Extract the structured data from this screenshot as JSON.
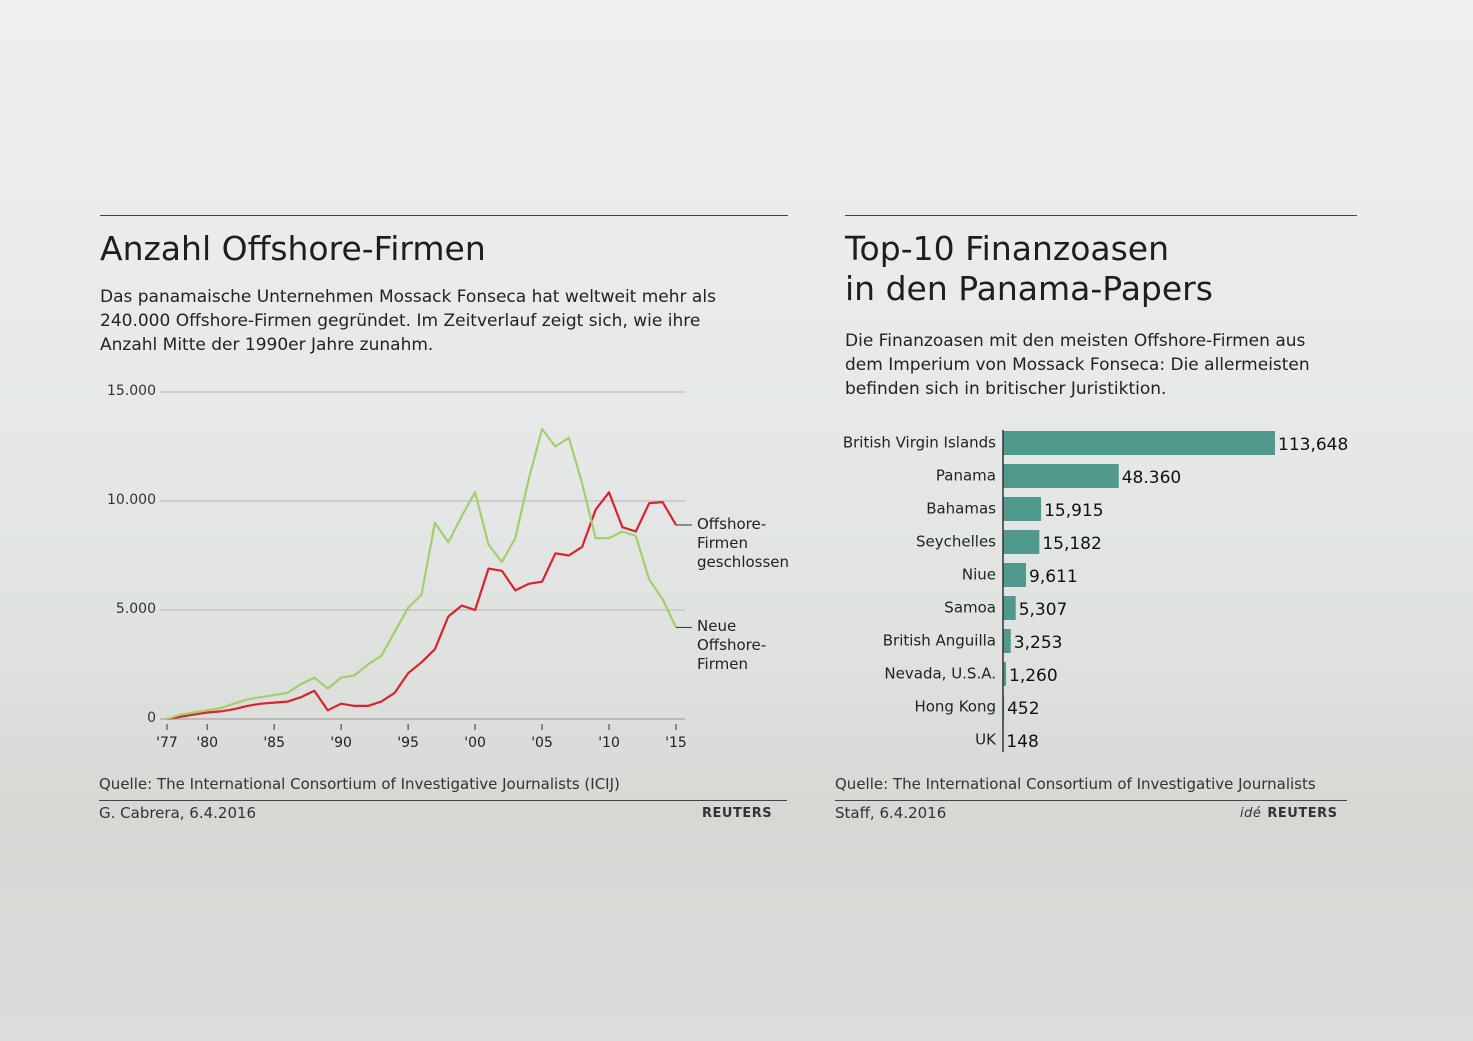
{
  "chart_data": [
    {
      "type": "line",
      "title": "Anzahl Offshore-Firmen",
      "subtitle": "Das panamaische Unternehmen Mossack Fonseca hat weltweit mehr als 240.000 Offshore-Firmen gegründet. Im Zeitverlauf zeigt sich, wie ihre Anzahl Mitte der 1990er Jahre zunahm.",
      "x": [
        1977,
        1978,
        1979,
        1980,
        1981,
        1982,
        1983,
        1984,
        1985,
        1986,
        1987,
        1988,
        1989,
        1990,
        1991,
        1992,
        1993,
        1994,
        1995,
        1996,
        1997,
        1998,
        1999,
        2000,
        2001,
        2002,
        2003,
        2004,
        2005,
        2006,
        2007,
        2008,
        2009,
        2010,
        2011,
        2012,
        2013,
        2014,
        2015
      ],
      "xlim": [
        1977,
        2015
      ],
      "xticks": [
        {
          "value": 1977,
          "label": "'77"
        },
        {
          "value": 1980,
          "label": "'80"
        },
        {
          "value": 1985,
          "label": "'85"
        },
        {
          "value": 1990,
          "label": "'90"
        },
        {
          "value": 1995,
          "label": "'95"
        },
        {
          "value": 2000,
          "label": "'00"
        },
        {
          "value": 2005,
          "label": "'05"
        },
        {
          "value": 2010,
          "label": "'10"
        },
        {
          "value": 2015,
          "label": "'15"
        }
      ],
      "ylim": [
        0,
        15000
      ],
      "yticks": [
        0,
        {
          "value": 5000,
          "label": "5.000"
        },
        {
          "value": 10000,
          "label": "10.000"
        },
        {
          "value": 15000,
          "label": "15.000"
        }
      ],
      "grid": true,
      "series": [
        {
          "name": "Offshore-Firmen geschlossen",
          "color": "#d9232e",
          "values": [
            0,
            100,
            200,
            300,
            350,
            450,
            600,
            700,
            750,
            800,
            1000,
            1300,
            400,
            700,
            600,
            600,
            800,
            1200,
            2100,
            2600,
            3200,
            4700,
            5200,
            5000,
            6900,
            6800,
            5900,
            6200,
            6300,
            7600,
            7500,
            7900,
            9600,
            10400,
            8800,
            8600,
            9900,
            9950,
            8900
          ]
        },
        {
          "name": "Neue Offshore-Firmen",
          "color": "#a2cf6c",
          "values": [
            0,
            200,
            300,
            400,
            500,
            700,
            900,
            1000,
            1100,
            1200,
            1600,
            1900,
            1400,
            1900,
            2000,
            2500,
            2900,
            4000,
            5100,
            5700,
            9000,
            8100,
            9300,
            10400,
            8000,
            7200,
            8300,
            11000,
            13300,
            12500,
            12900,
            10800,
            8300,
            8300,
            8600,
            8400,
            6400,
            5500,
            4200
          ]
        }
      ],
      "source": "Quelle: The International Consortium of Investigative Journalists (ICIJ)",
      "credit": "G. Cabrera,  6.4.2016",
      "logo": "REUTERS"
    },
    {
      "type": "bar",
      "title": "Top-10 Finanzoasen\nin den Panama-Papers",
      "subtitle": "Die Finanzoasen mit den meisten Offshore-Firmen aus dem Imperium von Mossack Fonseca: Die allermeisten befinden sich in britischer Juristiktion.",
      "categories": [
        "British Virgin Islands",
        "Panama",
        "Bahamas",
        "Seychelles",
        "Niue",
        "Samoa",
        "British Anguilla",
        "Nevada, U.S.A.",
        "Hong Kong",
        "UK"
      ],
      "values": [
        113648,
        48360,
        15915,
        15182,
        9611,
        5307,
        3253,
        1260,
        452,
        148
      ],
      "value_labels": [
        "113,648",
        "48.360",
        "15,915",
        "15,182",
        "9,611",
        "5,307",
        "3,253",
        "1,260",
        "452",
        "148"
      ],
      "color": "#4f9a8c",
      "source": "Quelle: The International Consortium of Investigative Journalists",
      "credit": "Staff,  6.4.2016",
      "logo_prefix": "idé",
      "logo": "REUTERS"
    }
  ]
}
